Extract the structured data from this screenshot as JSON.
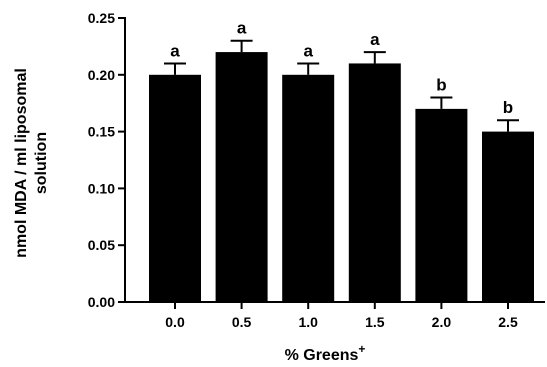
{
  "chart_data": {
    "type": "bar",
    "categories": [
      "0.0",
      "0.5",
      "1.0",
      "1.5",
      "2.0",
      "2.5"
    ],
    "values": [
      0.2,
      0.22,
      0.2,
      0.21,
      0.17,
      0.15
    ],
    "error": [
      0.01,
      0.01,
      0.01,
      0.01,
      0.01,
      0.01
    ],
    "significance": [
      "a",
      "a",
      "a",
      "a",
      "b",
      "b"
    ],
    "xlabel": "% Greens",
    "xlabel_superscript": "+",
    "ylabel_line1": "nmol MDA / ml liposomal",
    "ylabel_line2": "solution",
    "ylim": [
      0,
      0.25
    ],
    "yticks": [
      "0.00",
      "0.05",
      "0.10",
      "0.15",
      "0.20",
      "0.25"
    ],
    "bar_color": "#000000",
    "grid": false
  }
}
